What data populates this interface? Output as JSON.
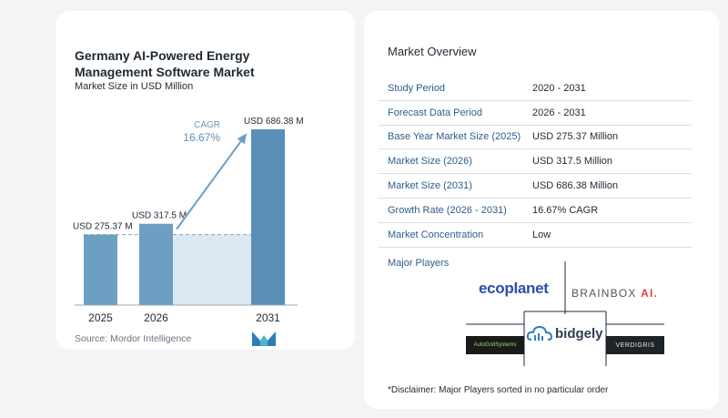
{
  "chart_data": {
    "type": "bar",
    "title": "Germany AI-Powered Energy Management Software Market",
    "subtitle": "Market Size in USD Million",
    "categories": [
      "2025",
      "2026",
      "2031"
    ],
    "values": [
      275.37,
      317.5,
      686.38
    ],
    "data_labels": [
      "USD 275.37 M",
      "USD 317.5 M",
      "USD 686.38 M"
    ],
    "cagr_label": "CAGR",
    "cagr_value": "16.67%",
    "ylim": [
      0,
      700
    ],
    "colors": {
      "bar": "#6d9fc3",
      "bar_highlight": "#5a8fb8",
      "band": "#dce8f2",
      "arrow": "#6d9fc3"
    }
  },
  "source": "Source:  Mordor Intelligence",
  "overview": {
    "title": "Market Overview",
    "rows": [
      {
        "label": "Study Period",
        "value": "2020 - 2031"
      },
      {
        "label": "Forecast Data Period",
        "value": "2026 - 2031"
      },
      {
        "label": "Base Year Market Size (2025)",
        "value": "USD 275.37 Million"
      },
      {
        "label": "Market Size (2026)",
        "value": "USD 317.5 Million"
      },
      {
        "label": "Market Size (2031)",
        "value": "USD 686.38 Million"
      },
      {
        "label": "Growth Rate (2026 - 2031)",
        "value": "16.67% CAGR"
      },
      {
        "label": "Market Concentration",
        "value": "Low"
      }
    ]
  },
  "players": {
    "title": "Major Players",
    "logos": {
      "ecoplanet": "ecoplanet",
      "brainbox": "BRAINBOX",
      "brainbox_ai": "AI.",
      "autogrid": "AutoGridSystems",
      "bidgely": "bidgely",
      "verdigris": "VERDIGRIS"
    }
  },
  "disclaimer": "*Disclaimer: Major Players sorted in no particular order"
}
